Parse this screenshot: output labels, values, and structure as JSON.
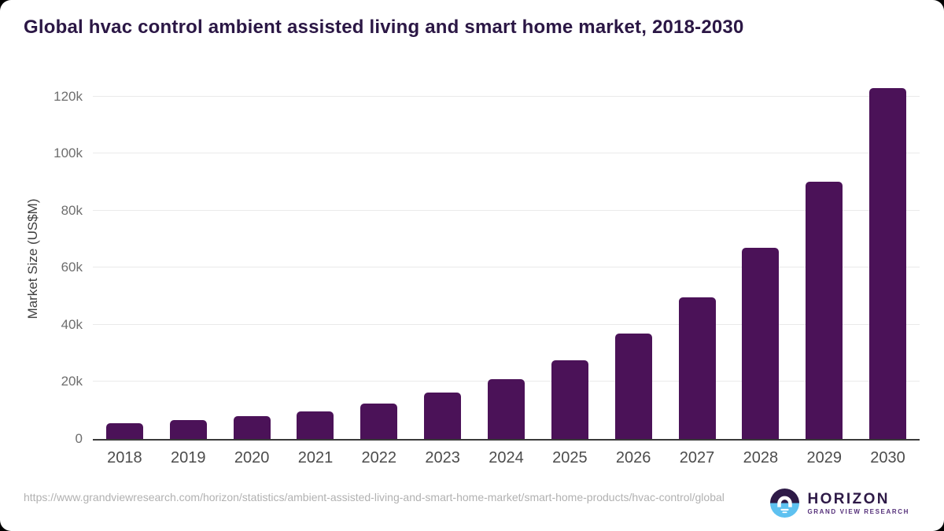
{
  "page": {
    "title": "Global hvac control ambient assisted living and smart home market, 2018-2030"
  },
  "footer": {
    "source_url": "https://www.grandviewresearch.com/horizon/statistics/ambient-assisted-living-and-smart-home-market/smart-home-products/hvac-control/global",
    "brand_name": "HORIZON",
    "brand_tagline": "GRAND VIEW RESEARCH",
    "logo_icon": "horizon-sunrise-circle-icon"
  },
  "colors": {
    "bar": "#4b1258",
    "title_text": "#2b1745",
    "grid_line": "#eaeaea",
    "axis_line": "#3a3a3a",
    "tick_text": "#6e6e6e",
    "x_label_text": "#4c4c4c",
    "ylabel_text": "#3f3f3f",
    "url_text": "#b1b1b1",
    "brand_text": "#2e1a47",
    "brand_tagline_text": "#55307a",
    "logo_top": "#2e1a47",
    "logo_bottom": "#5ec1f0",
    "card_bg": "#ffffff",
    "page_bg": "#000000"
  },
  "chart_data": {
    "type": "bar",
    "title": "Global hvac control ambient assisted living and smart home market, 2018-2030",
    "categories": [
      "2018",
      "2019",
      "2020",
      "2021",
      "2022",
      "2023",
      "2024",
      "2025",
      "2026",
      "2027",
      "2028",
      "2029",
      "2030"
    ],
    "values": [
      5400,
      6500,
      7900,
      9600,
      12300,
      16200,
      21000,
      27500,
      37000,
      49600,
      66900,
      90200,
      123000
    ],
    "unit": "US$M",
    "xlabel": "",
    "ylabel": "Market Size (US$M)",
    "ylim": [
      0,
      126300
    ],
    "yticks": {
      "values": [
        0,
        20000,
        40000,
        60000,
        80000,
        100000,
        120000
      ],
      "labels": [
        "0",
        "20k",
        "40k",
        "60k",
        "80k",
        "100k",
        "120k"
      ]
    },
    "grid": "horizontal",
    "legend": false,
    "bar_color": "#4b1258"
  }
}
